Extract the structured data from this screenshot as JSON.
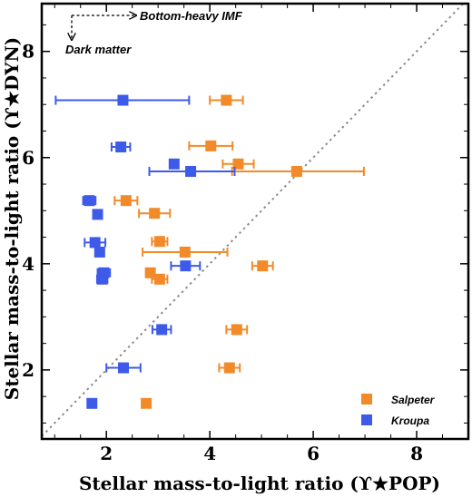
{
  "chart_data": {
    "type": "scatter",
    "xlabel": "Stellar mass-to-light ratio (ϒ★POP)",
    "ylabel": "Stellar mass-to-light ratio (ϒ★DYN)",
    "xlim": [
      0.75,
      9.0
    ],
    "ylim": [
      0.7,
      8.9
    ],
    "xticks": [
      2,
      4,
      6,
      8
    ],
    "yticks": [
      2,
      4,
      6,
      8
    ],
    "one_to_one_line": true,
    "legend_position": "bottom-right",
    "annotations": {
      "bottom_heavy": "Bottom-heavy IMF",
      "dark_matter": "Dark matter"
    },
    "series": [
      {
        "name": "Salpeter",
        "color": "#f28a2a",
        "points": [
          {
            "x": 4.32,
            "y": 7.08,
            "xerr": [
              0.32,
              0.32
            ]
          },
          {
            "x": 4.02,
            "y": 6.22,
            "xerr": [
              0.42,
              0.42
            ]
          },
          {
            "x": 4.55,
            "y": 5.88,
            "xerr": [
              0.3,
              0.3
            ]
          },
          {
            "x": 5.68,
            "y": 5.74,
            "xerr": [
              1.25,
              1.3
            ]
          },
          {
            "x": 2.38,
            "y": 5.19,
            "xerr": [
              0.22,
              0.22
            ]
          },
          {
            "x": 2.93,
            "y": 4.95,
            "xerr": [
              0.3,
              0.3
            ]
          },
          {
            "x": 3.03,
            "y": 4.42,
            "xerr": [
              0.15,
              0.15
            ]
          },
          {
            "x": 3.52,
            "y": 4.22,
            "xerr": [
              0.82,
              0.82
            ]
          },
          {
            "x": 5.02,
            "y": 3.96,
            "xerr": [
              0.2,
              0.2
            ]
          },
          {
            "x": 2.85,
            "y": 3.83,
            "xerr": [
              0.05,
              0.05
            ]
          },
          {
            "x": 3.03,
            "y": 3.71,
            "xerr": [
              0.15,
              0.15
            ]
          },
          {
            "x": 4.52,
            "y": 2.76,
            "xerr": [
              0.2,
              0.2
            ]
          },
          {
            "x": 4.38,
            "y": 2.04,
            "xerr": [
              0.2,
              0.2
            ]
          },
          {
            "x": 2.77,
            "y": 1.37,
            "xerr": [
              0,
              0
            ]
          }
        ]
      },
      {
        "name": "Kroupa",
        "color": "#3d5be8",
        "points": [
          {
            "x": 2.32,
            "y": 7.08,
            "xerr": [
              1.3,
              1.28
            ]
          },
          {
            "x": 2.28,
            "y": 6.2,
            "xerr": [
              0.18,
              0.18
            ]
          },
          {
            "x": 3.31,
            "y": 5.88,
            "xerr": [
              0.05,
              0.05
            ]
          },
          {
            "x": 3.63,
            "y": 5.74,
            "xerr": [
              0.8,
              0.85
            ]
          },
          {
            "x": 1.67,
            "y": 5.19,
            "xerr": [
              0.12,
              0.12
            ]
          },
          {
            "x": 1.83,
            "y": 4.93,
            "xerr": [
              0.05,
              0.05
            ]
          },
          {
            "x": 1.78,
            "y": 4.4,
            "xerr": [
              0.2,
              0.2
            ]
          },
          {
            "x": 1.87,
            "y": 4.22,
            "xerr": [
              0.05,
              0.05
            ]
          },
          {
            "x": 3.53,
            "y": 3.96,
            "xerr": [
              0.28,
              0.28
            ]
          },
          {
            "x": 1.95,
            "y": 3.83,
            "xerr": [
              0.12,
              0.12
            ]
          },
          {
            "x": 1.92,
            "y": 3.71,
            "xerr": [
              0.1,
              0.1
            ]
          },
          {
            "x": 3.07,
            "y": 2.76,
            "xerr": [
              0.18,
              0.18
            ]
          },
          {
            "x": 2.33,
            "y": 2.04,
            "xerr": [
              0.33,
              0.33
            ]
          },
          {
            "x": 1.72,
            "y": 1.37,
            "xerr": [
              0,
              0
            ]
          }
        ]
      }
    ]
  }
}
